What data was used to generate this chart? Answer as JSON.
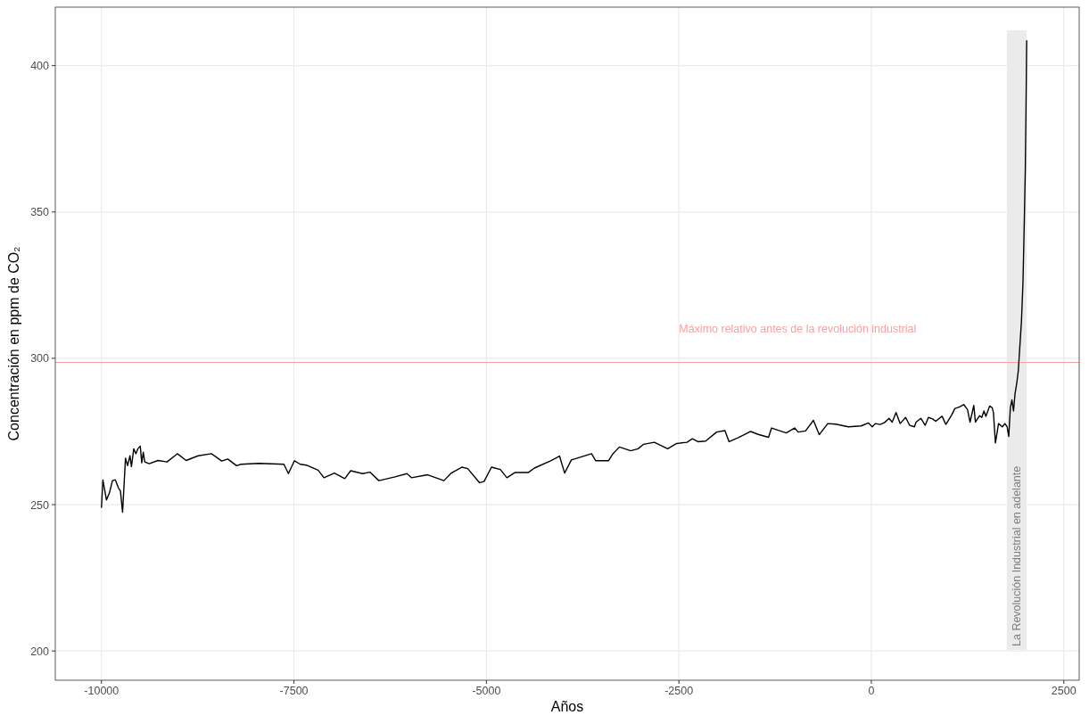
{
  "chart_data": {
    "type": "line",
    "xlabel": "Años",
    "ylabel": "Concentración en ppm de CO₂",
    "xlim": [
      -10600,
      2700
    ],
    "ylim": [
      190,
      420
    ],
    "xticks": [
      -10000,
      -7500,
      -5000,
      -2500,
      0,
      2500
    ],
    "yticks": [
      200,
      250,
      300,
      350,
      400
    ],
    "grid": true,
    "marker": "none",
    "line_style": "solid",
    "ref_lines": [
      {
        "axis": "y",
        "value": 298.6,
        "label": "Máximo relativo antes de la revolución industrial",
        "color": "#f8a0a0"
      }
    ],
    "bands": [
      {
        "axis": "x",
        "from": 1760,
        "to": 2018,
        "label": "La Revolución Industrial en adelante",
        "color": "#ebebeb"
      }
    ],
    "series": [
      {
        "color": "#000000",
        "x": [
          -10000,
          -9982,
          -9935,
          -9896,
          -9858,
          -9820,
          -9780,
          -9754,
          -9726,
          -9688,
          -9661,
          -9630,
          -9611,
          -9581,
          -9553,
          -9527,
          -9496,
          -9477,
          -9457,
          -9438,
          -9380,
          -9265,
          -9149,
          -9015,
          -8900,
          -8745,
          -8572,
          -8438,
          -8360,
          -8245,
          -8187,
          -7956,
          -7630,
          -7572,
          -7494,
          -7417,
          -7340,
          -7186,
          -7109,
          -6975,
          -6840,
          -6763,
          -6609,
          -6513,
          -6397,
          -6186,
          -6032,
          -5974,
          -5763,
          -5552,
          -5455,
          -5320,
          -5243,
          -5089,
          -5031,
          -4934,
          -4819,
          -4734,
          -4627,
          -4454,
          -4376,
          -4165,
          -4050,
          -3984,
          -3896,
          -3819,
          -3634,
          -3580,
          -3414,
          -3357,
          -3272,
          -3126,
          -3030,
          -2961,
          -2818,
          -2645,
          -2529,
          -2395,
          -2325,
          -2252,
          -2152,
          -2009,
          -1902,
          -1848,
          -1721,
          -1567,
          -1470,
          -1335,
          -1296,
          -1105,
          -997,
          -950,
          -855,
          -752,
          -677,
          -566,
          -463,
          -298,
          -133,
          -38,
          12,
          53,
          114,
          169,
          230,
          271,
          321,
          374,
          445,
          498,
          560,
          581,
          643,
          700,
          741,
          795,
          836,
          919,
          968,
          1043,
          1084,
          1146,
          1200,
          1249,
          1282,
          1331,
          1352,
          1405,
          1434,
          1463,
          1488,
          1537,
          1570,
          1586,
          1612,
          1652,
          1702,
          1735,
          1764,
          1785,
          1806,
          1826,
          1847,
          1867,
          1888,
          1909,
          1930,
          1950,
          1970,
          1988,
          2000,
          2010,
          2018
        ],
        "values": [
          249.1,
          258.4,
          251.6,
          254.1,
          258.2,
          258.5,
          255.7,
          254.7,
          247.4,
          265.9,
          263.3,
          266.7,
          263,
          269.1,
          267.4,
          269.1,
          270,
          264.3,
          267.9,
          264.6,
          264,
          265.1,
          264.6,
          267.4,
          265.1,
          266.7,
          267.4,
          264.9,
          265.6,
          263.3,
          263.8,
          264.1,
          263.8,
          260.6,
          265,
          263.8,
          263.5,
          261.8,
          259.2,
          260.8,
          258.9,
          261.6,
          260.6,
          261.1,
          258.2,
          259.5,
          260.6,
          259.2,
          260.2,
          258.2,
          260.8,
          262.8,
          262.3,
          257.5,
          257.9,
          262.8,
          262,
          259.2,
          261,
          261,
          262.5,
          265,
          266.6,
          260.8,
          265.3,
          265.9,
          267.4,
          265,
          265,
          267.4,
          269.7,
          268.4,
          269.1,
          270.6,
          271.3,
          269.1,
          270.9,
          271.3,
          272.5,
          271.5,
          271.7,
          274.8,
          275.3,
          271.5,
          273,
          275,
          274,
          273,
          276.2,
          274.5,
          276.2,
          274.8,
          275.2,
          278.8,
          273.9,
          277.7,
          277.5,
          276.6,
          276.9,
          277.9,
          276.6,
          277.7,
          277.4,
          278,
          279.5,
          278.2,
          281.5,
          277.7,
          279.8,
          277.1,
          276.6,
          278.2,
          279.5,
          277.1,
          279.8,
          279.3,
          278.5,
          280.2,
          277.4,
          280.6,
          282.8,
          283.4,
          284.2,
          282.5,
          278.2,
          283.9,
          278.2,
          280.4,
          279.8,
          282,
          280.2,
          283.7,
          283.1,
          281.5,
          271.1,
          277.7,
          276.6,
          277.7,
          276.6,
          273.3,
          283.1,
          285.8,
          282,
          288,
          291.3,
          295.7,
          304.4,
          312.6,
          326.2,
          348,
          364.4,
          386.2,
          408.5
        ]
      }
    ]
  }
}
